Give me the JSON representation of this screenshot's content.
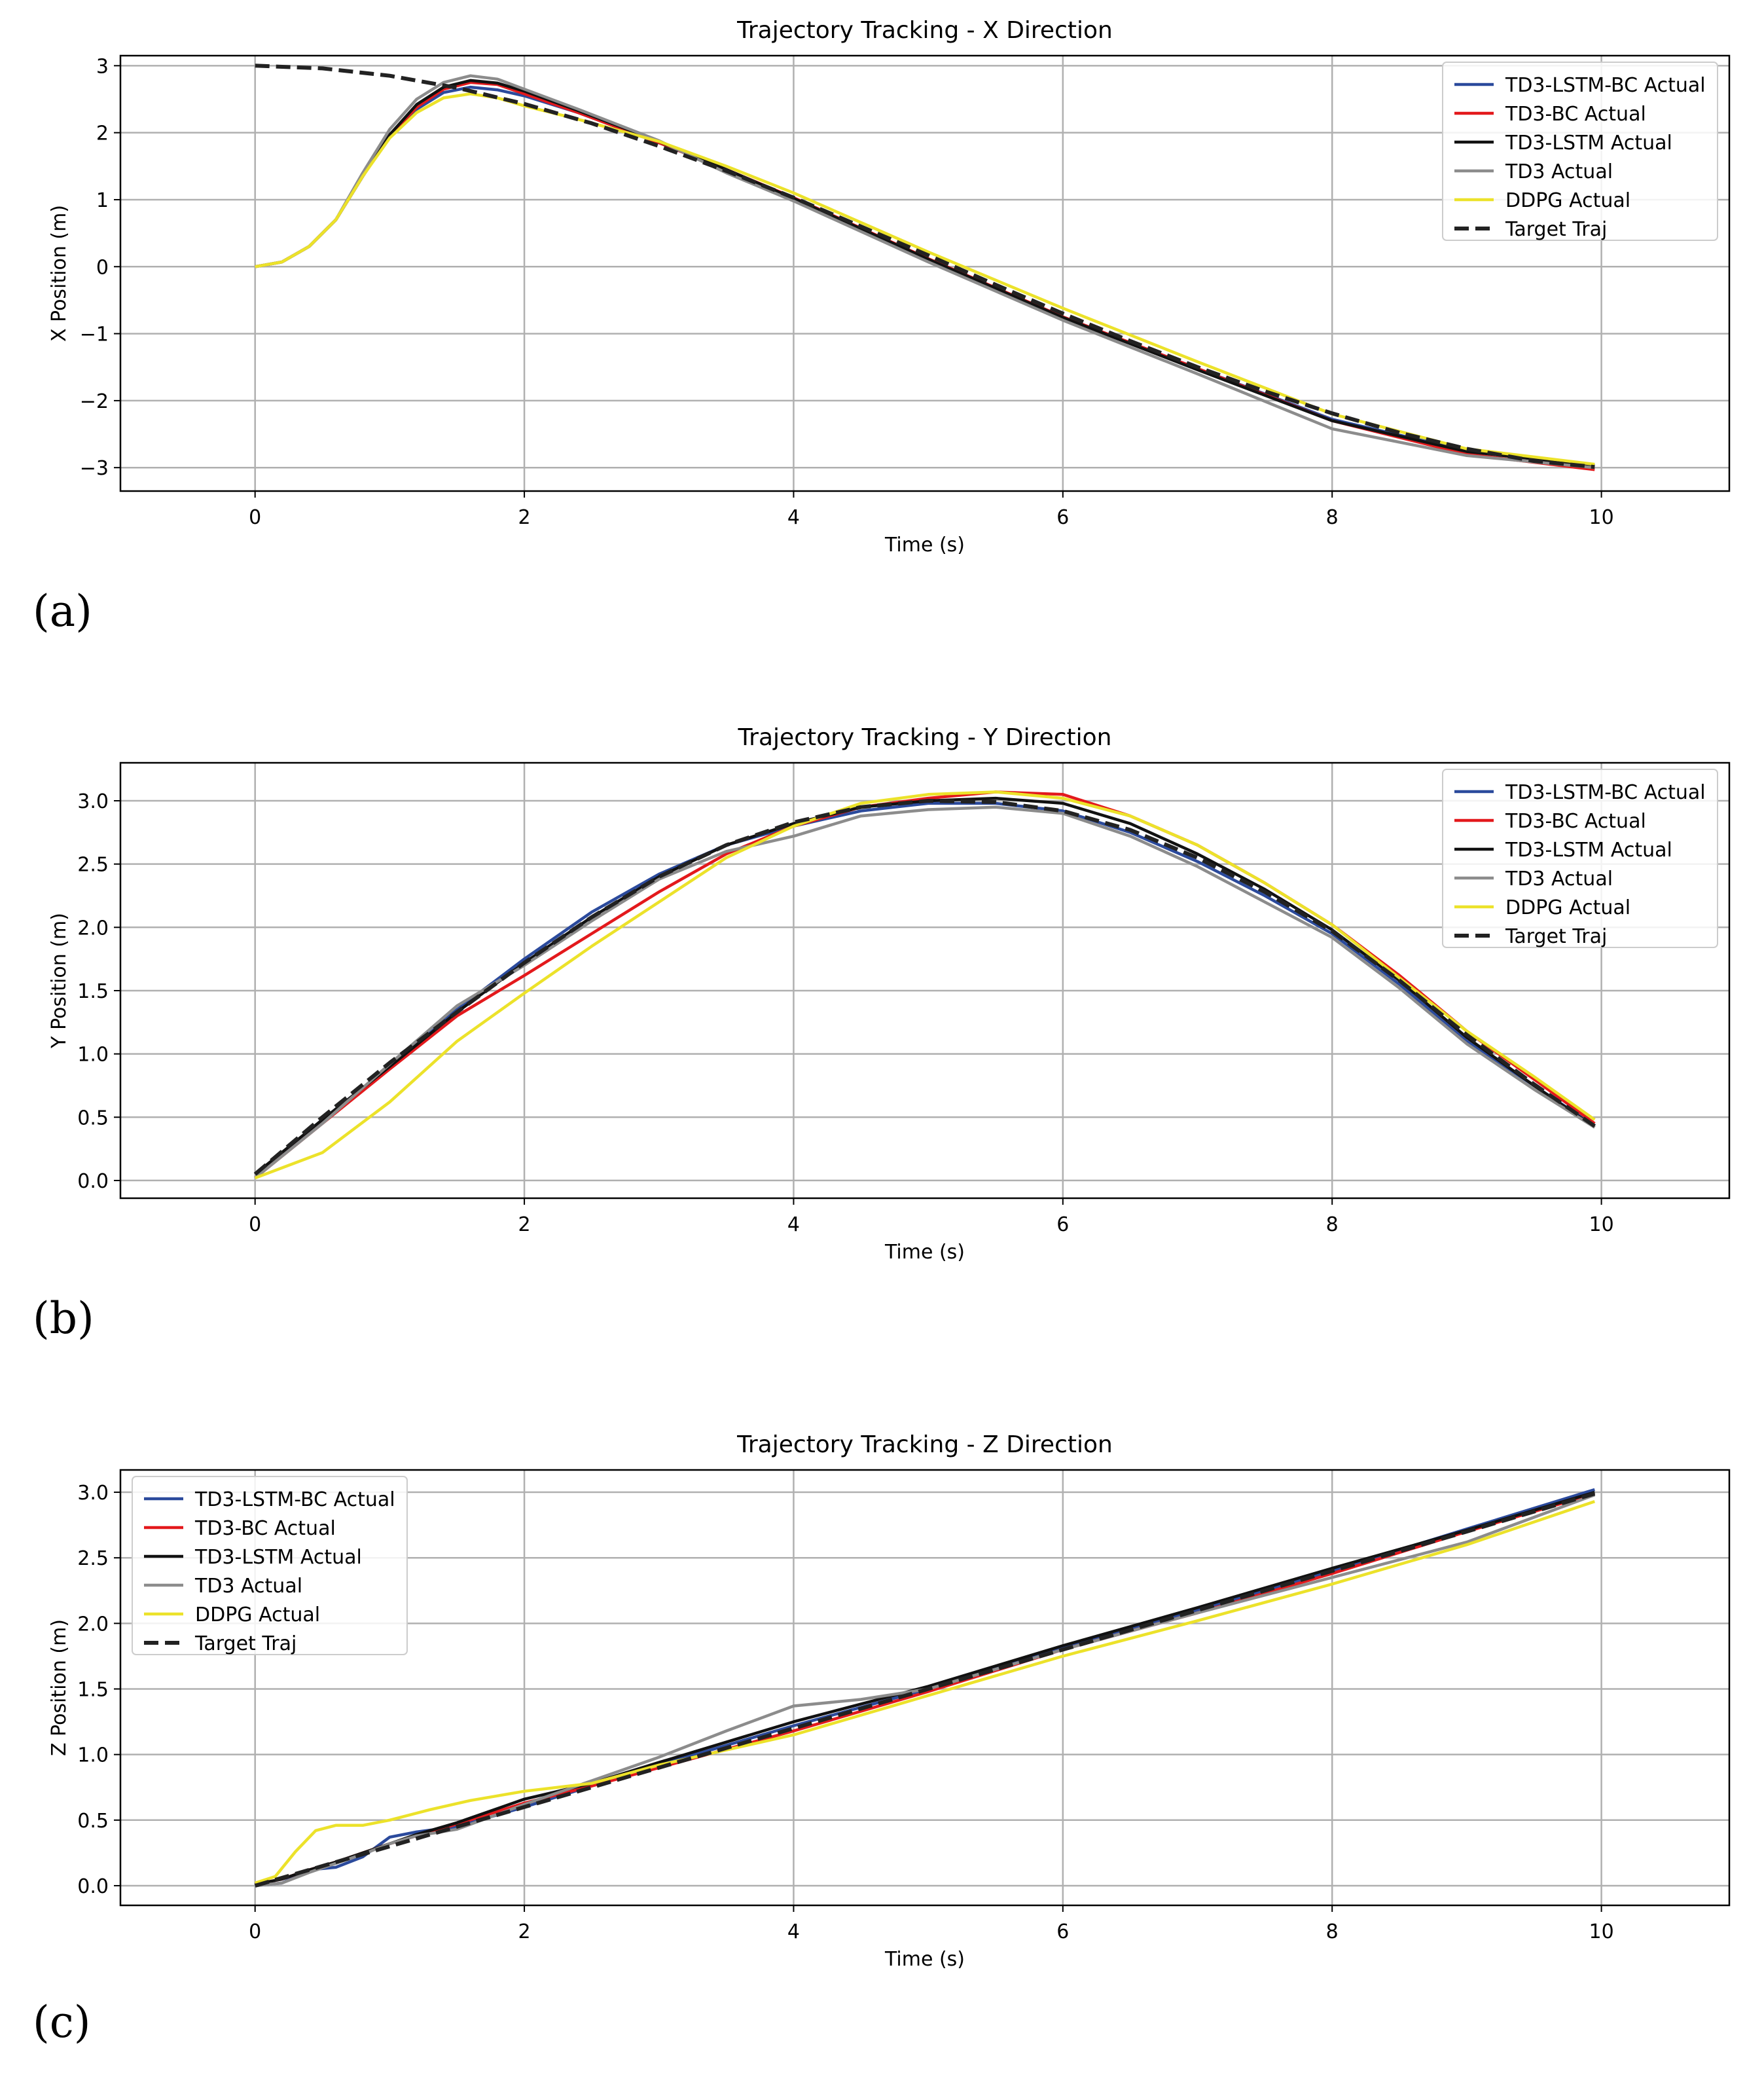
{
  "panel_labels": [
    "(a)",
    "(b)",
    "(c)"
  ],
  "colors": {
    "td3_lstm_bc": "#2b4a9c",
    "td3_bc": "#e3191c",
    "td3_lstm": "#111111",
    "td3": "#8c8c8c",
    "ddpg": "#ece22a",
    "target": "#222222",
    "grid": "#b0b0b0"
  },
  "chart_data": [
    {
      "type": "line",
      "title": "Trajectory Tracking - X Direction",
      "xlabel": "Time (s)",
      "ylabel": "X Position (m)",
      "xlim": [
        -1,
        10.95
      ],
      "ylim": [
        -3.35,
        3.15
      ],
      "xticks": [
        0,
        2,
        4,
        6,
        8,
        10
      ],
      "yticks": [
        -3,
        -2,
        -1,
        0,
        1,
        2,
        3
      ],
      "ytick_labels": [
        "−3",
        "−2",
        "−1",
        "0",
        "1",
        "2",
        "3"
      ],
      "grid": true,
      "legend_position": "top-right",
      "series": [
        {
          "name": "TD3-LSTM-BC Actual",
          "key": "td3_lstm_bc",
          "dashed": false,
          "x": [
            0,
            0.2,
            0.4,
            0.6,
            0.8,
            1.0,
            1.2,
            1.4,
            1.6,
            1.8,
            2.0,
            2.4,
            3.0,
            3.5,
            4.0,
            5.0,
            6.0,
            7.0,
            8.0,
            9.0,
            9.95
          ],
          "y": [
            0,
            0.07,
            0.3,
            0.7,
            1.35,
            1.95,
            2.35,
            2.6,
            2.68,
            2.64,
            2.55,
            2.3,
            1.85,
            1.45,
            1.02,
            0.11,
            -0.75,
            -1.52,
            -2.28,
            -2.75,
            -2.97
          ]
        },
        {
          "name": "TD3-BC Actual",
          "key": "td3_bc",
          "dashed": false,
          "x": [
            0,
            0.2,
            0.4,
            0.6,
            0.8,
            1.0,
            1.2,
            1.4,
            1.6,
            1.8,
            2.0,
            2.4,
            3.0,
            3.5,
            4.0,
            5.0,
            6.0,
            7.0,
            8.0,
            9.0,
            9.95
          ],
          "y": [
            0,
            0.07,
            0.3,
            0.7,
            1.35,
            1.95,
            2.38,
            2.65,
            2.75,
            2.72,
            2.58,
            2.3,
            1.85,
            1.45,
            1.03,
            0.12,
            -0.75,
            -1.52,
            -2.3,
            -2.8,
            -3.03
          ]
        },
        {
          "name": "TD3-LSTM Actual",
          "key": "td3_lstm",
          "dashed": false,
          "x": [
            0,
            0.2,
            0.4,
            0.6,
            0.8,
            1.0,
            1.2,
            1.4,
            1.6,
            1.8,
            2.0,
            2.4,
            3.0,
            3.5,
            4.0,
            5.0,
            6.0,
            7.0,
            8.0,
            9.0,
            9.95
          ],
          "y": [
            0,
            0.07,
            0.3,
            0.7,
            1.35,
            1.97,
            2.42,
            2.68,
            2.78,
            2.74,
            2.62,
            2.33,
            1.87,
            1.45,
            1.02,
            0.11,
            -0.76,
            -1.54,
            -2.3,
            -2.76,
            -2.97
          ]
        },
        {
          "name": "TD3 Actual",
          "key": "td3",
          "dashed": false,
          "x": [
            0,
            0.2,
            0.4,
            0.6,
            0.8,
            1.0,
            1.2,
            1.4,
            1.6,
            1.8,
            2.0,
            2.4,
            3.0,
            3.5,
            4.0,
            5.0,
            6.0,
            7.0,
            8.0,
            9.0,
            9.95
          ],
          "y": [
            0,
            0.07,
            0.3,
            0.7,
            1.4,
            2.05,
            2.5,
            2.75,
            2.85,
            2.8,
            2.65,
            2.35,
            1.88,
            1.4,
            0.98,
            0.07,
            -0.8,
            -1.6,
            -2.42,
            -2.82,
            -3.0
          ]
        },
        {
          "name": "DDPG Actual",
          "key": "ddpg",
          "dashed": false,
          "x": [
            0,
            0.2,
            0.4,
            0.6,
            0.8,
            1.0,
            1.2,
            1.4,
            1.6,
            1.8,
            2.0,
            2.4,
            3.0,
            3.5,
            4.0,
            5.0,
            6.0,
            7.0,
            8.0,
            9.0,
            9.95
          ],
          "y": [
            0,
            0.07,
            0.3,
            0.7,
            1.35,
            1.92,
            2.3,
            2.52,
            2.58,
            2.52,
            2.4,
            2.2,
            1.87,
            1.5,
            1.1,
            0.22,
            -0.62,
            -1.42,
            -2.2,
            -2.72,
            -2.95
          ]
        },
        {
          "name": "Target Traj",
          "key": "target",
          "dashed": true,
          "x": [
            0,
            0.5,
            1.0,
            1.5,
            2.0,
            2.5,
            3.0,
            3.5,
            4.0,
            4.5,
            5.0,
            5.5,
            6.0,
            6.5,
            7.0,
            7.5,
            8.0,
            8.5,
            9.0,
            9.5,
            9.95
          ],
          "y": [
            3.0,
            2.96,
            2.85,
            2.67,
            2.43,
            2.14,
            1.8,
            1.43,
            1.03,
            0.6,
            0.17,
            -0.27,
            -0.7,
            -1.11,
            -1.5,
            -1.86,
            -2.19,
            -2.48,
            -2.72,
            -2.9,
            -2.99
          ]
        }
      ]
    },
    {
      "type": "line",
      "title": "Trajectory Tracking - Y Direction",
      "xlabel": "Time (s)",
      "ylabel": "Y Position (m)",
      "xlim": [
        -1,
        10.95
      ],
      "ylim": [
        -0.14,
        3.3
      ],
      "xticks": [
        0,
        2,
        4,
        6,
        8,
        10
      ],
      "yticks": [
        0,
        0.5,
        1.0,
        1.5,
        2.0,
        2.5,
        3.0
      ],
      "ytick_labels": [
        "0.0",
        "0.5",
        "1.0",
        "1.5",
        "2.0",
        "2.5",
        "3.0"
      ],
      "grid": true,
      "legend_position": "top-right",
      "series": [
        {
          "name": "TD3-LSTM-BC Actual",
          "key": "td3_lstm_bc",
          "dashed": false,
          "x": [
            0,
            0.5,
            1.0,
            1.5,
            2.0,
            2.5,
            3.0,
            3.5,
            4.0,
            4.5,
            5.0,
            5.5,
            6.0,
            6.5,
            7.0,
            7.5,
            8.0,
            8.5,
            9.0,
            9.5,
            9.95
          ],
          "y": [
            0.02,
            0.48,
            0.9,
            1.35,
            1.75,
            2.12,
            2.42,
            2.65,
            2.8,
            2.92,
            2.98,
            2.98,
            2.92,
            2.75,
            2.52,
            2.25,
            1.95,
            1.55,
            1.1,
            0.75,
            0.43
          ]
        },
        {
          "name": "TD3-BC Actual",
          "key": "td3_bc",
          "dashed": false,
          "x": [
            0,
            0.5,
            1.0,
            1.5,
            2.0,
            2.5,
            3.0,
            3.5,
            4.0,
            4.5,
            5.0,
            5.5,
            6.0,
            6.5,
            7.0,
            7.5,
            8.0,
            8.5,
            9.0,
            9.5,
            9.95
          ],
          "y": [
            0.02,
            0.45,
            0.88,
            1.3,
            1.62,
            1.95,
            2.28,
            2.58,
            2.8,
            2.95,
            3.02,
            3.07,
            3.05,
            2.88,
            2.65,
            2.35,
            2.02,
            1.62,
            1.18,
            0.8,
            0.45
          ]
        },
        {
          "name": "TD3-LSTM Actual",
          "key": "td3_lstm",
          "dashed": false,
          "x": [
            0,
            0.5,
            1.0,
            1.5,
            2.0,
            2.5,
            3.0,
            3.5,
            4.0,
            4.5,
            5.0,
            5.5,
            6.0,
            6.5,
            7.0,
            7.5,
            8.0,
            8.5,
            9.0,
            9.5,
            9.95
          ],
          "y": [
            0.05,
            0.48,
            0.9,
            1.33,
            1.72,
            2.08,
            2.4,
            2.65,
            2.82,
            2.95,
            3.0,
            3.02,
            2.98,
            2.82,
            2.58,
            2.3,
            1.98,
            1.58,
            1.13,
            0.75,
            0.42
          ]
        },
        {
          "name": "TD3 Actual",
          "key": "td3",
          "dashed": false,
          "x": [
            0,
            0.5,
            1.0,
            1.5,
            2.0,
            2.5,
            3.0,
            3.5,
            4.0,
            4.5,
            5.0,
            5.5,
            6.0,
            6.5,
            7.0,
            7.5,
            8.0,
            8.5,
            9.0,
            9.5,
            9.95
          ],
          "y": [
            0.02,
            0.45,
            0.92,
            1.38,
            1.7,
            2.05,
            2.38,
            2.6,
            2.72,
            2.88,
            2.93,
            2.95,
            2.9,
            2.72,
            2.48,
            2.2,
            1.92,
            1.52,
            1.08,
            0.72,
            0.42
          ]
        },
        {
          "name": "DDPG Actual",
          "key": "ddpg",
          "dashed": false,
          "x": [
            0,
            0.5,
            1.0,
            1.5,
            2.0,
            2.5,
            3.0,
            3.5,
            4.0,
            4.5,
            5.0,
            5.5,
            6.0,
            6.5,
            7.0,
            7.5,
            8.0,
            8.5,
            9.0,
            9.5,
            9.95
          ],
          "y": [
            0.02,
            0.22,
            0.62,
            1.1,
            1.48,
            1.85,
            2.2,
            2.55,
            2.8,
            2.98,
            3.05,
            3.07,
            3.02,
            2.88,
            2.65,
            2.35,
            2.02,
            1.6,
            1.18,
            0.82,
            0.48
          ]
        },
        {
          "name": "Target Traj",
          "key": "target",
          "dashed": true,
          "x": [
            0,
            0.5,
            1.0,
            1.5,
            2.0,
            2.5,
            3.0,
            3.5,
            4.0,
            4.5,
            5.0,
            5.5,
            6.0,
            6.5,
            7.0,
            7.5,
            8.0,
            8.5,
            9.0,
            9.5,
            9.95
          ],
          "y": [
            0.05,
            0.5,
            0.93,
            1.33,
            1.72,
            2.08,
            2.4,
            2.65,
            2.83,
            2.95,
            3.0,
            2.99,
            2.92,
            2.77,
            2.55,
            2.28,
            1.97,
            1.58,
            1.15,
            0.76,
            0.43
          ]
        }
      ]
    },
    {
      "type": "line",
      "title": "Trajectory Tracking - Z Direction",
      "xlabel": "Time (s)",
      "ylabel": "Z Position (m)",
      "xlim": [
        -1,
        10.95
      ],
      "ylim": [
        -0.15,
        3.17
      ],
      "xticks": [
        0,
        2,
        4,
        6,
        8,
        10
      ],
      "yticks": [
        0,
        0.5,
        1.0,
        1.5,
        2.0,
        2.5,
        3.0
      ],
      "ytick_labels": [
        "0.0",
        "0.5",
        "1.0",
        "1.5",
        "2.0",
        "2.5",
        "3.0"
      ],
      "grid": true,
      "legend_position": "top-left",
      "series": [
        {
          "name": "TD3-LSTM-BC Actual",
          "key": "td3_lstm_bc",
          "dashed": false,
          "x": [
            0,
            0.2,
            0.4,
            0.6,
            0.8,
            1.0,
            1.2,
            1.5,
            2.0,
            2.5,
            3.0,
            4.0,
            5.0,
            6.0,
            7.0,
            8.0,
            9.0,
            9.95
          ],
          "y": [
            0,
            0.02,
            0.12,
            0.14,
            0.22,
            0.37,
            0.41,
            0.45,
            0.6,
            0.76,
            0.92,
            1.22,
            1.5,
            1.82,
            2.1,
            2.4,
            2.72,
            3.02
          ]
        },
        {
          "name": "TD3-BC Actual",
          "key": "td3_bc",
          "dashed": false,
          "x": [
            0,
            0.2,
            0.4,
            0.6,
            0.8,
            1.0,
            1.2,
            1.5,
            2.0,
            2.5,
            3.0,
            4.0,
            5.0,
            6.0,
            7.0,
            8.0,
            9.0,
            9.95
          ],
          "y": [
            0.01,
            0.05,
            0.12,
            0.18,
            0.25,
            0.32,
            0.38,
            0.47,
            0.63,
            0.76,
            0.9,
            1.18,
            1.48,
            1.8,
            2.08,
            2.38,
            2.7,
            2.99
          ]
        },
        {
          "name": "TD3-LSTM Actual",
          "key": "td3_lstm",
          "dashed": false,
          "x": [
            0,
            0.2,
            0.4,
            0.6,
            0.8,
            1.0,
            1.2,
            1.5,
            2.0,
            2.5,
            3.0,
            4.0,
            5.0,
            6.0,
            7.0,
            8.0,
            9.0,
            9.95
          ],
          "y": [
            0.01,
            0.05,
            0.12,
            0.18,
            0.25,
            0.32,
            0.39,
            0.48,
            0.66,
            0.78,
            0.94,
            1.25,
            1.52,
            1.83,
            2.12,
            2.42,
            2.71,
            3.0
          ]
        },
        {
          "name": "TD3 Actual",
          "key": "td3",
          "dashed": false,
          "x": [
            0,
            0.2,
            0.4,
            0.6,
            0.8,
            1.0,
            1.2,
            1.5,
            2.0,
            2.5,
            3.0,
            3.5,
            4.0,
            4.5,
            5.0,
            6.0,
            7.0,
            8.0,
            9.0,
            9.95
          ],
          "y": [
            0,
            0.02,
            0.1,
            0.17,
            0.24,
            0.32,
            0.38,
            0.43,
            0.62,
            0.8,
            0.98,
            1.18,
            1.37,
            1.42,
            1.5,
            1.8,
            2.08,
            2.35,
            2.62,
            2.98
          ]
        },
        {
          "name": "DDPG Actual",
          "key": "ddpg",
          "dashed": false,
          "x": [
            0,
            0.15,
            0.3,
            0.45,
            0.6,
            0.8,
            1.0,
            1.3,
            1.6,
            2.0,
            2.5,
            3.0,
            4.0,
            5.0,
            6.0,
            7.0,
            8.0,
            9.0,
            9.95
          ],
          "y": [
            0.02,
            0.07,
            0.26,
            0.42,
            0.46,
            0.46,
            0.5,
            0.58,
            0.65,
            0.72,
            0.78,
            0.92,
            1.15,
            1.45,
            1.75,
            2.02,
            2.3,
            2.6,
            2.93
          ]
        },
        {
          "name": "Target Traj",
          "key": "target",
          "dashed": true,
          "x": [
            0,
            1,
            2,
            3,
            4,
            5,
            6,
            7,
            8,
            9,
            9.95
          ],
          "y": [
            0,
            0.3,
            0.6,
            0.9,
            1.2,
            1.5,
            1.8,
            2.1,
            2.4,
            2.7,
            2.99
          ]
        }
      ]
    }
  ]
}
